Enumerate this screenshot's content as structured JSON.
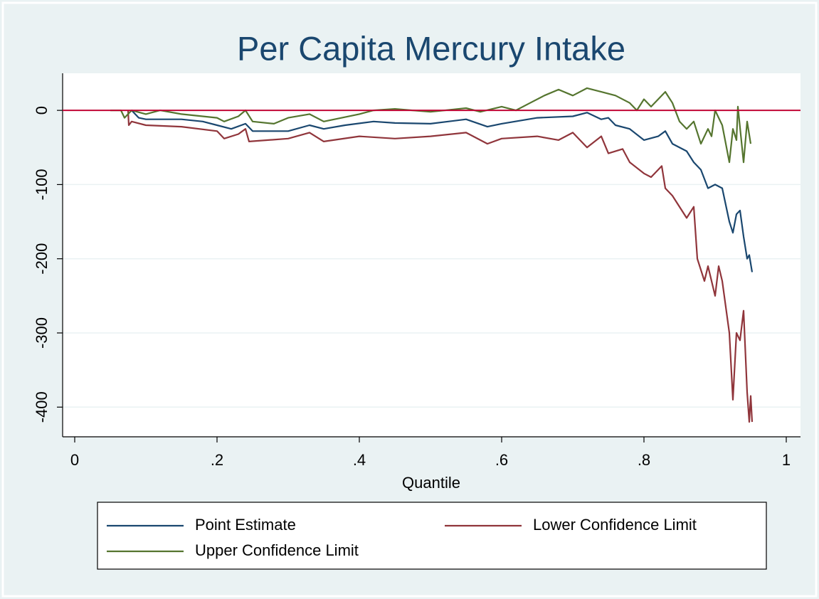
{
  "chart_data": {
    "type": "line",
    "title": "Per Capita Mercury Intake",
    "x_label": "Quantile",
    "xlim": [
      -0.017,
      1.02
    ],
    "ylim": [
      -440,
      50
    ],
    "xticks": [
      0,
      {
        "value": 0.2,
        "label": ".2"
      },
      {
        "value": 0.4,
        "label": ".4"
      },
      {
        "value": 0.6,
        "label": ".6"
      },
      {
        "value": 0.8,
        "label": ".8"
      },
      1
    ],
    "yticks": [
      0,
      -100,
      -200,
      -300,
      -400
    ],
    "grid": true,
    "legend": "bottom",
    "reference_line": {
      "value": 0,
      "color": "#c10534"
    },
    "series": [
      {
        "name": "Point Estimate",
        "color": "#1a476f",
        "x": [
          0.08,
          0.09,
          0.1,
          0.15,
          0.18,
          0.2,
          0.22,
          0.24,
          0.25,
          0.3,
          0.33,
          0.35,
          0.38,
          0.42,
          0.45,
          0.5,
          0.55,
          0.58,
          0.6,
          0.65,
          0.7,
          0.72,
          0.74,
          0.75,
          0.76,
          0.78,
          0.8,
          0.82,
          0.83,
          0.84,
          0.86,
          0.87,
          0.88,
          0.89,
          0.9,
          0.91,
          0.92,
          0.925,
          0.93,
          0.935,
          0.94,
          0.945,
          0.948,
          0.952
        ],
        "values": [
          0,
          -10,
          -12,
          -12,
          -15,
          -20,
          -25,
          -18,
          -28,
          -28,
          -20,
          -25,
          -20,
          -15,
          -17,
          -18,
          -12,
          -22,
          -18,
          -10,
          -8,
          -3,
          -12,
          -10,
          -20,
          -25,
          -40,
          -35,
          -28,
          -45,
          -55,
          -70,
          -80,
          -105,
          -100,
          -105,
          -150,
          -165,
          -140,
          -135,
          -170,
          -200,
          -195,
          -218
        ]
      },
      {
        "name": "Lower Confidence Limit",
        "color": "#90353b",
        "x": [
          0.075,
          0.076,
          0.08,
          0.1,
          0.15,
          0.2,
          0.21,
          0.23,
          0.24,
          0.245,
          0.3,
          0.33,
          0.35,
          0.4,
          0.45,
          0.5,
          0.55,
          0.58,
          0.6,
          0.65,
          0.68,
          0.7,
          0.72,
          0.74,
          0.75,
          0.77,
          0.78,
          0.8,
          0.81,
          0.825,
          0.83,
          0.84,
          0.86,
          0.87,
          0.875,
          0.885,
          0.89,
          0.9,
          0.905,
          0.91,
          0.92,
          0.925,
          0.93,
          0.935,
          0.94,
          0.945,
          0.948,
          0.95,
          0.952
        ],
        "values": [
          0,
          -20,
          -15,
          -20,
          -22,
          -28,
          -38,
          -32,
          -25,
          -42,
          -38,
          -30,
          -42,
          -35,
          -38,
          -35,
          -30,
          -45,
          -38,
          -35,
          -40,
          -30,
          -50,
          -35,
          -58,
          -52,
          -70,
          -85,
          -90,
          -75,
          -105,
          -115,
          -145,
          -130,
          -200,
          -230,
          -210,
          -250,
          -210,
          -230,
          -300,
          -390,
          -300,
          -310,
          -270,
          -380,
          -420,
          -385,
          -420
        ]
      },
      {
        "name": "Upper Confidence Limit",
        "color": "#55752f",
        "x": [
          0.05,
          0.065,
          0.07,
          0.08,
          0.1,
          0.12,
          0.15,
          0.2,
          0.21,
          0.23,
          0.24,
          0.25,
          0.28,
          0.3,
          0.33,
          0.35,
          0.4,
          0.42,
          0.45,
          0.5,
          0.55,
          0.57,
          0.6,
          0.62,
          0.64,
          0.66,
          0.68,
          0.7,
          0.72,
          0.74,
          0.76,
          0.78,
          0.79,
          0.8,
          0.81,
          0.83,
          0.84,
          0.85,
          0.86,
          0.87,
          0.88,
          0.89,
          0.895,
          0.9,
          0.91,
          0.92,
          0.925,
          0.93,
          0.932,
          0.94,
          0.945,
          0.95
        ],
        "values": [
          0,
          0,
          -10,
          0,
          -5,
          0,
          -5,
          -10,
          -15,
          -8,
          0,
          -15,
          -18,
          -10,
          -5,
          -15,
          -5,
          0,
          2,
          -2,
          3,
          -2,
          5,
          0,
          10,
          20,
          28,
          20,
          30,
          25,
          20,
          10,
          0,
          15,
          5,
          25,
          10,
          -15,
          -25,
          -15,
          -45,
          -25,
          -35,
          0,
          -20,
          -70,
          -25,
          -40,
          5,
          -70,
          -15,
          -45
        ]
      }
    ]
  }
}
